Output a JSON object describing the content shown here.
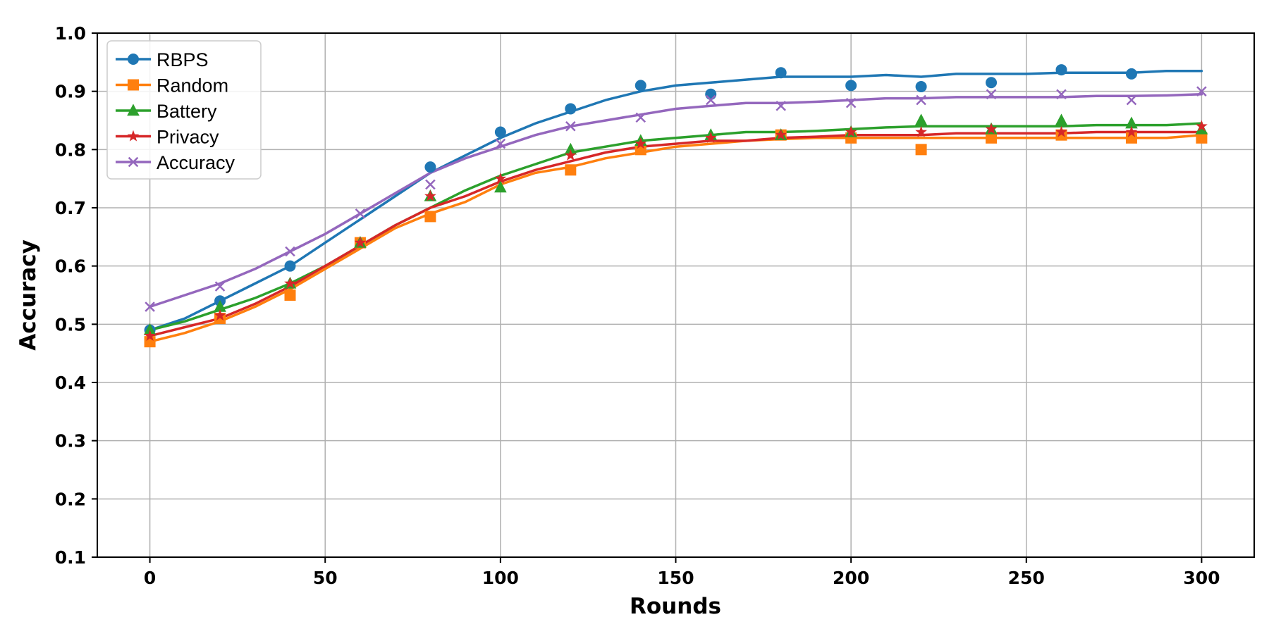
{
  "chart_data": {
    "type": "line",
    "title": "",
    "xlabel": "Rounds",
    "ylabel": "Accuracy",
    "xlim": [
      -15,
      315
    ],
    "ylim": [
      0.1,
      1.0
    ],
    "xticks": [
      0,
      50,
      100,
      150,
      200,
      250,
      300
    ],
    "yticks": [
      0.1,
      0.2,
      0.3,
      0.4,
      0.5,
      0.6,
      0.7,
      0.8,
      0.9,
      1.0
    ],
    "xtick_labels": [
      "0",
      "50",
      "100",
      "150",
      "200",
      "250",
      "300"
    ],
    "ytick_labels": [
      "0.1",
      "0.2",
      "0.3",
      "0.4",
      "0.5",
      "0.6",
      "0.7",
      "0.8",
      "0.9",
      "1.0"
    ],
    "grid": true,
    "legend_position": "top-left",
    "series": [
      {
        "name": "RBPS",
        "color": "#1f77b4",
        "marker": "circle",
        "x": [
          0,
          10,
          20,
          30,
          40,
          50,
          60,
          70,
          80,
          90,
          100,
          110,
          120,
          130,
          140,
          150,
          160,
          170,
          180,
          190,
          200,
          210,
          220,
          230,
          240,
          250,
          260,
          270,
          280,
          290,
          300
        ],
        "y": [
          0.49,
          0.51,
          0.54,
          0.57,
          0.6,
          0.64,
          0.68,
          0.72,
          0.76,
          0.79,
          0.82,
          0.845,
          0.865,
          0.885,
          0.9,
          0.91,
          0.915,
          0.92,
          0.925,
          0.925,
          0.925,
          0.928,
          0.925,
          0.93,
          0.93,
          0.93,
          0.932,
          0.932,
          0.932,
          0.935,
          0.935
        ],
        "marker_x": [
          0,
          20,
          40,
          80,
          100,
          120,
          140,
          160,
          180,
          200,
          220,
          240,
          260,
          280
        ],
        "marker_y": [
          0.49,
          0.54,
          0.6,
          0.77,
          0.83,
          0.87,
          0.91,
          0.895,
          0.932,
          0.91,
          0.908,
          0.915,
          0.937,
          0.93
        ]
      },
      {
        "name": "Random",
        "color": "#ff7f0e",
        "marker": "square",
        "x": [
          0,
          10,
          20,
          30,
          40,
          50,
          60,
          70,
          80,
          90,
          100,
          110,
          120,
          130,
          140,
          150,
          160,
          170,
          180,
          190,
          200,
          210,
          220,
          230,
          240,
          250,
          260,
          270,
          280,
          290,
          300
        ],
        "y": [
          0.47,
          0.485,
          0.505,
          0.53,
          0.56,
          0.595,
          0.63,
          0.665,
          0.69,
          0.71,
          0.74,
          0.76,
          0.77,
          0.785,
          0.795,
          0.805,
          0.81,
          0.815,
          0.818,
          0.82,
          0.82,
          0.82,
          0.82,
          0.82,
          0.82,
          0.82,
          0.82,
          0.82,
          0.82,
          0.82,
          0.825
        ],
        "marker_x": [
          0,
          20,
          40,
          60,
          80,
          120,
          140,
          180,
          200,
          220,
          240,
          260,
          280,
          300
        ],
        "marker_y": [
          0.47,
          0.51,
          0.55,
          0.64,
          0.685,
          0.765,
          0.8,
          0.825,
          0.82,
          0.8,
          0.82,
          0.825,
          0.82,
          0.82
        ]
      },
      {
        "name": "Battery",
        "color": "#2ca02c",
        "marker": "triangle",
        "x": [
          0,
          10,
          20,
          30,
          40,
          50,
          60,
          70,
          80,
          90,
          100,
          110,
          120,
          130,
          140,
          150,
          160,
          170,
          180,
          190,
          200,
          210,
          220,
          230,
          240,
          250,
          260,
          270,
          280,
          290,
          300
        ],
        "y": [
          0.49,
          0.505,
          0.525,
          0.545,
          0.57,
          0.6,
          0.635,
          0.67,
          0.7,
          0.73,
          0.755,
          0.775,
          0.795,
          0.805,
          0.815,
          0.82,
          0.825,
          0.83,
          0.83,
          0.832,
          0.835,
          0.838,
          0.84,
          0.84,
          0.84,
          0.84,
          0.84,
          0.842,
          0.842,
          0.842,
          0.845
        ],
        "marker_x": [
          0,
          20,
          40,
          60,
          80,
          100,
          120,
          140,
          160,
          180,
          200,
          220,
          240,
          260,
          280,
          300
        ],
        "marker_y": [
          0.49,
          0.53,
          0.57,
          0.64,
          0.72,
          0.735,
          0.8,
          0.815,
          0.825,
          0.825,
          0.83,
          0.85,
          0.835,
          0.85,
          0.845,
          0.835
        ]
      },
      {
        "name": "Privacy",
        "color": "#d62728",
        "marker": "star",
        "x": [
          0,
          10,
          20,
          30,
          40,
          50,
          60,
          70,
          80,
          90,
          100,
          110,
          120,
          130,
          140,
          150,
          160,
          170,
          180,
          190,
          200,
          210,
          220,
          230,
          240,
          250,
          260,
          270,
          280,
          290,
          300
        ],
        "y": [
          0.48,
          0.495,
          0.51,
          0.535,
          0.565,
          0.6,
          0.635,
          0.67,
          0.7,
          0.72,
          0.745,
          0.765,
          0.78,
          0.795,
          0.805,
          0.81,
          0.815,
          0.815,
          0.82,
          0.822,
          0.825,
          0.825,
          0.825,
          0.828,
          0.828,
          0.828,
          0.828,
          0.83,
          0.83,
          0.83,
          0.83
        ],
        "marker_x": [
          0,
          20,
          40,
          60,
          80,
          100,
          120,
          140,
          160,
          180,
          200,
          220,
          240,
          260,
          280,
          300
        ],
        "marker_y": [
          0.48,
          0.515,
          0.57,
          0.64,
          0.72,
          0.75,
          0.79,
          0.81,
          0.82,
          0.825,
          0.83,
          0.83,
          0.835,
          0.83,
          0.83,
          0.84
        ]
      },
      {
        "name": "Accuracy",
        "color": "#9467bd",
        "marker": "x",
        "x": [
          0,
          10,
          20,
          30,
          40,
          50,
          60,
          70,
          80,
          90,
          100,
          110,
          120,
          130,
          140,
          150,
          160,
          170,
          180,
          190,
          200,
          210,
          220,
          230,
          240,
          250,
          260,
          270,
          280,
          290,
          300
        ],
        "y": [
          0.53,
          0.55,
          0.57,
          0.595,
          0.625,
          0.655,
          0.69,
          0.725,
          0.76,
          0.785,
          0.805,
          0.825,
          0.84,
          0.85,
          0.86,
          0.87,
          0.875,
          0.88,
          0.88,
          0.882,
          0.885,
          0.888,
          0.888,
          0.89,
          0.89,
          0.89,
          0.89,
          0.892,
          0.892,
          0.893,
          0.895
        ],
        "marker_x": [
          0,
          20,
          40,
          60,
          80,
          100,
          120,
          140,
          160,
          180,
          200,
          220,
          240,
          260,
          280,
          300
        ],
        "marker_y": [
          0.53,
          0.565,
          0.625,
          0.69,
          0.74,
          0.81,
          0.84,
          0.855,
          0.885,
          0.875,
          0.88,
          0.885,
          0.895,
          0.895,
          0.885,
          0.9
        ]
      }
    ]
  }
}
